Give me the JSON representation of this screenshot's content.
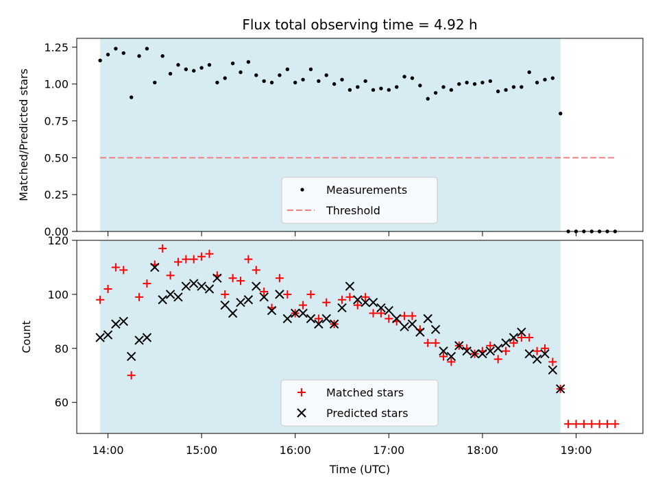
{
  "chart_data": [
    {
      "type": "scatter",
      "title": "Flux total observing time = 4.92 h",
      "xlabel": "",
      "ylabel": "Matched/Predicted stars",
      "ylim": [
        0.0,
        1.31
      ],
      "yticks": [
        "0.00",
        "0.25",
        "0.50",
        "0.75",
        "1.00",
        "1.25"
      ],
      "shaded_span": {
        "from": "13:55",
        "to": "18:50",
        "color": "#add8e6"
      },
      "legend": {
        "placement": "lower center"
      },
      "series": [
        {
          "name": "Measurements",
          "kind": "dot",
          "color": "#000000",
          "x": [
            "13:55",
            "14:00",
            "14:05",
            "14:10",
            "14:15",
            "14:20",
            "14:25",
            "14:30",
            "14:35",
            "14:40",
            "14:45",
            "14:50",
            "14:55",
            "15:00",
            "15:05",
            "15:10",
            "15:15",
            "15:20",
            "15:25",
            "15:30",
            "15:35",
            "15:40",
            "15:45",
            "15:50",
            "15:55",
            "16:00",
            "16:05",
            "16:10",
            "16:15",
            "16:20",
            "16:25",
            "16:30",
            "16:35",
            "16:40",
            "16:45",
            "16:50",
            "16:55",
            "17:00",
            "17:05",
            "17:10",
            "17:15",
            "17:20",
            "17:25",
            "17:30",
            "17:35",
            "17:40",
            "17:45",
            "17:50",
            "17:55",
            "18:00",
            "18:05",
            "18:10",
            "18:15",
            "18:20",
            "18:25",
            "18:30",
            "18:35",
            "18:40",
            "18:45",
            "18:50",
            "18:55",
            "19:00",
            "19:05",
            "19:10",
            "19:15",
            "19:20",
            "19:25"
          ],
          "y": [
            1.16,
            1.2,
            1.24,
            1.21,
            0.91,
            1.19,
            1.24,
            1.01,
            1.19,
            1.07,
            1.13,
            1.1,
            1.09,
            1.11,
            1.13,
            1.01,
            1.04,
            1.14,
            1.08,
            1.15,
            1.06,
            1.02,
            1.01,
            1.06,
            1.1,
            1.01,
            1.03,
            1.1,
            1.02,
            1.06,
            1.0,
            1.03,
            0.96,
            0.98,
            1.02,
            0.96,
            0.97,
            0.96,
            0.98,
            1.05,
            1.04,
            0.99,
            0.9,
            0.94,
            0.98,
            0.96,
            1.0,
            1.01,
            1.0,
            1.01,
            1.02,
            0.95,
            0.96,
            0.98,
            0.98,
            1.08,
            1.01,
            1.03,
            1.04,
            0.8,
            0.0,
            0.0,
            0.0,
            0.0,
            0.0,
            0.0,
            0.0
          ]
        },
        {
          "name": "Threshold",
          "kind": "dashed-line",
          "color": "#f08080",
          "x": [
            "13:55",
            "19:25"
          ],
          "y": [
            0.5,
            0.5
          ]
        }
      ]
    },
    {
      "type": "scatter",
      "title": "",
      "xlabel": "Time (UTC)",
      "ylabel": "Count",
      "ylim": [
        48.5,
        120
      ],
      "yticks": [
        "60",
        "80",
        "100",
        "120"
      ],
      "xticks": [
        "14:00",
        "15:00",
        "16:00",
        "17:00",
        "18:00",
        "19:00"
      ],
      "shaded_span": {
        "from": "13:55",
        "to": "18:50",
        "color": "#add8e6"
      },
      "legend": {
        "placement": "lower center"
      },
      "series": [
        {
          "name": "Matched stars",
          "kind": "plus",
          "color": "#ff0000",
          "x": [
            "13:55",
            "14:00",
            "14:05",
            "14:10",
            "14:15",
            "14:20",
            "14:25",
            "14:30",
            "14:35",
            "14:40",
            "14:45",
            "14:50",
            "14:55",
            "15:00",
            "15:05",
            "15:10",
            "15:15",
            "15:20",
            "15:25",
            "15:30",
            "15:35",
            "15:40",
            "15:45",
            "15:50",
            "15:55",
            "16:00",
            "16:05",
            "16:10",
            "16:15",
            "16:20",
            "16:25",
            "16:30",
            "16:35",
            "16:40",
            "16:45",
            "16:50",
            "16:55",
            "17:00",
            "17:05",
            "17:10",
            "17:15",
            "17:20",
            "17:25",
            "17:30",
            "17:35",
            "17:40",
            "17:45",
            "17:50",
            "17:55",
            "18:00",
            "18:05",
            "18:10",
            "18:15",
            "18:20",
            "18:25",
            "18:30",
            "18:35",
            "18:40",
            "18:45",
            "18:50",
            "18:55",
            "19:00",
            "19:05",
            "19:10",
            "19:15",
            "19:20",
            "19:25"
          ],
          "y": [
            98,
            102,
            110,
            109,
            70,
            99,
            104,
            111,
            117,
            107,
            112,
            113,
            113,
            114,
            115,
            107,
            100,
            106,
            105,
            113,
            109,
            101,
            95,
            106,
            100,
            93,
            96,
            100,
            91,
            97,
            89,
            98,
            99,
            96,
            99,
            93,
            93,
            91,
            90,
            92,
            92,
            87,
            82,
            82,
            77,
            75,
            81,
            80,
            78,
            79,
            81,
            76,
            79,
            82,
            84,
            84,
            79,
            80,
            75,
            65,
            52,
            52,
            52,
            52,
            52,
            52,
            52
          ]
        },
        {
          "name": "Predicted stars",
          "kind": "x",
          "color": "#000000",
          "x": [
            "13:55",
            "14:00",
            "14:05",
            "14:10",
            "14:15",
            "14:20",
            "14:25",
            "14:30",
            "14:35",
            "14:40",
            "14:45",
            "14:50",
            "14:55",
            "15:00",
            "15:05",
            "15:10",
            "15:15",
            "15:20",
            "15:25",
            "15:30",
            "15:35",
            "15:40",
            "15:45",
            "15:50",
            "15:55",
            "16:00",
            "16:05",
            "16:10",
            "16:15",
            "16:20",
            "16:25",
            "16:30",
            "16:35",
            "16:40",
            "16:45",
            "16:50",
            "16:55",
            "17:00",
            "17:05",
            "17:10",
            "17:15",
            "17:20",
            "17:25",
            "17:30",
            "17:35",
            "17:40",
            "17:45",
            "17:50",
            "17:55",
            "18:00",
            "18:05",
            "18:10",
            "18:15",
            "18:20",
            "18:25",
            "18:30",
            "18:35",
            "18:40",
            "18:45",
            "18:50"
          ],
          "y": [
            84,
            85,
            89,
            90,
            77,
            83,
            84,
            110,
            98,
            100,
            99,
            103,
            104,
            103,
            102,
            106,
            96,
            93,
            97,
            98,
            103,
            99,
            94,
            100,
            91,
            93,
            93,
            91,
            89,
            91,
            89,
            95,
            103,
            98,
            97,
            97,
            95,
            94,
            91,
            88,
            89,
            86,
            91,
            87,
            79,
            77,
            81,
            79,
            78,
            78,
            79,
            80,
            82,
            84,
            86,
            78,
            76,
            78,
            72,
            65
          ]
        }
      ]
    }
  ]
}
